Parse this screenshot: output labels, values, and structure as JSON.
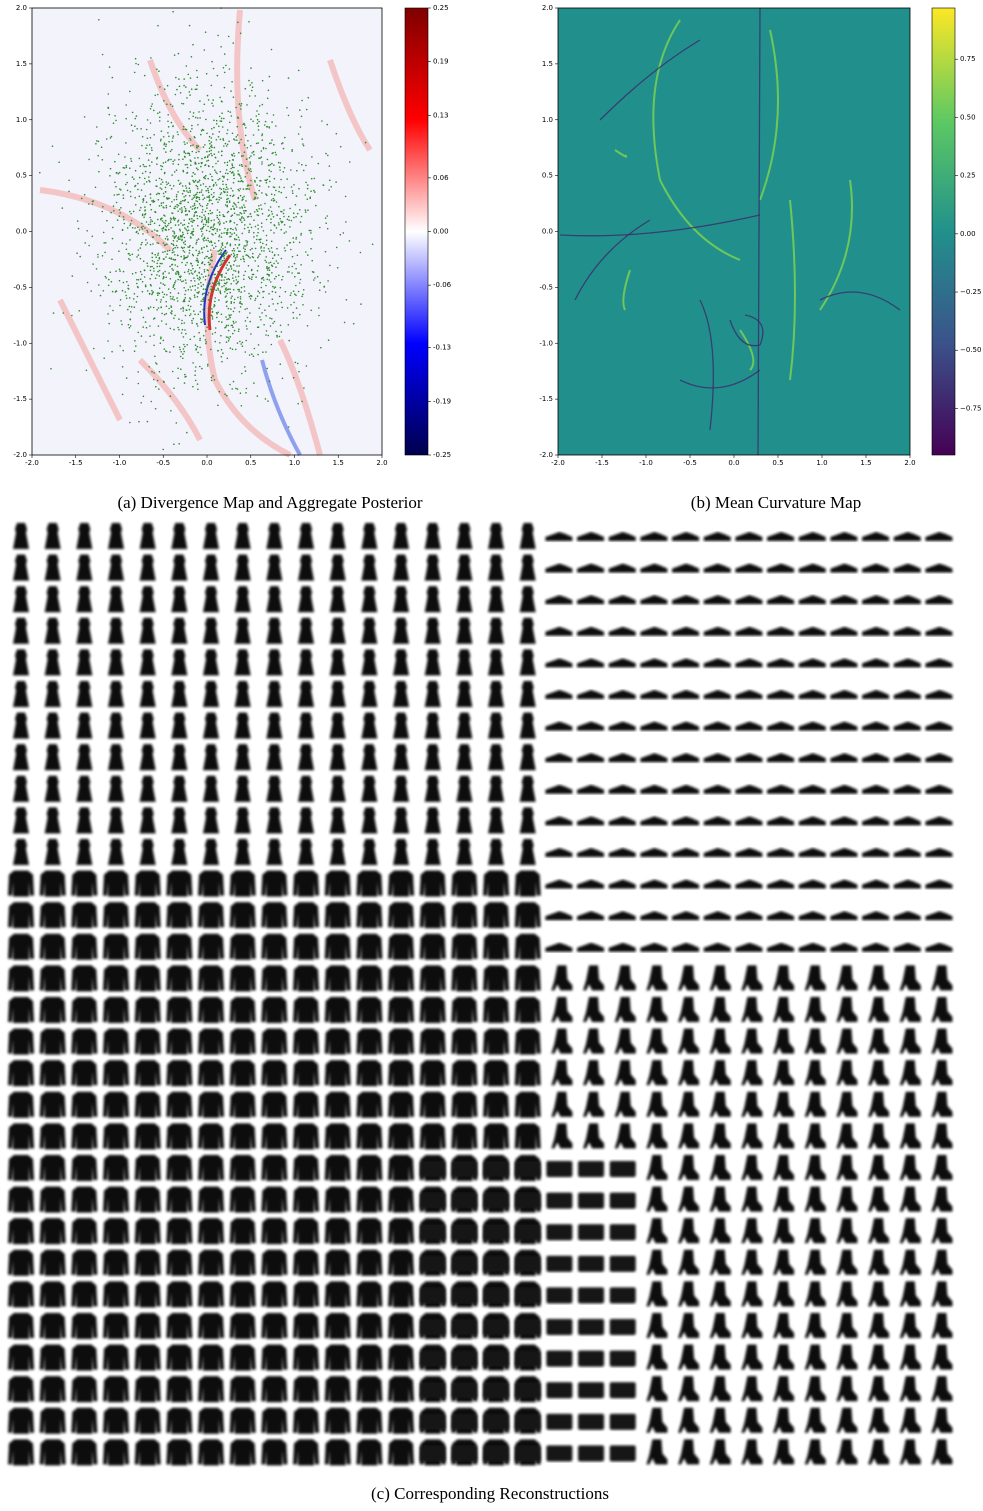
{
  "panels": [
    {
      "caption": "(a) Divergence Map and Aggregate Posterior",
      "xlim": [
        -2,
        2
      ],
      "ylim": [
        -2,
        2
      ],
      "xticks": [
        {
          "value": -2,
          "label": "-2.0"
        },
        {
          "value": -1.5,
          "label": "-1.5"
        },
        {
          "value": -1,
          "label": "-1.0"
        },
        {
          "value": -0.5,
          "label": "-0.5"
        },
        {
          "value": 0,
          "label": "0.0"
        },
        {
          "value": 0.5,
          "label": "0.5"
        },
        {
          "value": 1,
          "label": "1.0"
        },
        {
          "value": 1.5,
          "label": "1.5"
        },
        {
          "value": 2,
          "label": "2.0"
        }
      ],
      "yticks": [
        {
          "value": -2,
          "label": "-2.0"
        },
        {
          "value": -1.5,
          "label": "-1.5"
        },
        {
          "value": -1,
          "label": "-1.0"
        },
        {
          "value": -0.5,
          "label": "-0.5"
        },
        {
          "value": 0,
          "label": "0.0"
        },
        {
          "value": 0.5,
          "label": "0.5"
        },
        {
          "value": 1,
          "label": "1.0"
        },
        {
          "value": 1.5,
          "label": "1.5"
        },
        {
          "value": 2,
          "label": "2.0"
        }
      ],
      "colorbar": {
        "colormap": "seismic",
        "lim": [
          -0.25,
          0.25
        ],
        "ticks": [
          0.25,
          0.19,
          0.13,
          0.06,
          {
            "value": 0,
            "label": "0.00"
          },
          -0.06,
          -0.13,
          -0.19,
          -0.25
        ]
      }
    },
    {
      "caption": "(b) Mean Curvature Map",
      "xlim": [
        -2,
        2
      ],
      "ylim": [
        -2,
        2
      ],
      "xticks": [
        {
          "value": -2,
          "label": "-2.0"
        },
        {
          "value": -1.5,
          "label": "-1.5"
        },
        {
          "value": -1,
          "label": "-1.0"
        },
        {
          "value": -0.5,
          "label": "-0.5"
        },
        {
          "value": 0,
          "label": "0.0"
        },
        {
          "value": 0.5,
          "label": "0.5"
        },
        {
          "value": 1,
          "label": "1.0"
        },
        {
          "value": 1.5,
          "label": "1.5"
        },
        {
          "value": 2,
          "label": "2.0"
        }
      ],
      "yticks": [
        {
          "value": -2,
          "label": "-2.0"
        },
        {
          "value": -1.5,
          "label": "-1.5"
        },
        {
          "value": -1,
          "label": "-1.0"
        },
        {
          "value": -0.5,
          "label": "-0.5"
        },
        {
          "value": 0,
          "label": "0.0"
        },
        {
          "value": 0.5,
          "label": "0.5"
        },
        {
          "value": 1,
          "label": "1.0"
        },
        {
          "value": 1.5,
          "label": "1.5"
        },
        {
          "value": 2,
          "label": "2.0"
        }
      ],
      "colorbar": {
        "colormap": "viridis",
        "lim": [
          -0.95,
          0.97
        ],
        "ticks": [
          {
            "value": 0.75,
            "label": "0.75"
          },
          {
            "value": 0.5,
            "label": "0.50"
          },
          {
            "value": 0.25,
            "label": "0.25"
          },
          {
            "value": 0,
            "label": "0.00"
          },
          {
            "value": -0.25,
            "label": "−0.25"
          },
          {
            "value": -0.5,
            "label": "−0.50"
          },
          {
            "value": -0.75,
            "label": "−0.75"
          }
        ]
      }
    }
  ],
  "reconstructions": {
    "caption": "(c) Corresponding Reconstructions"
  }
}
